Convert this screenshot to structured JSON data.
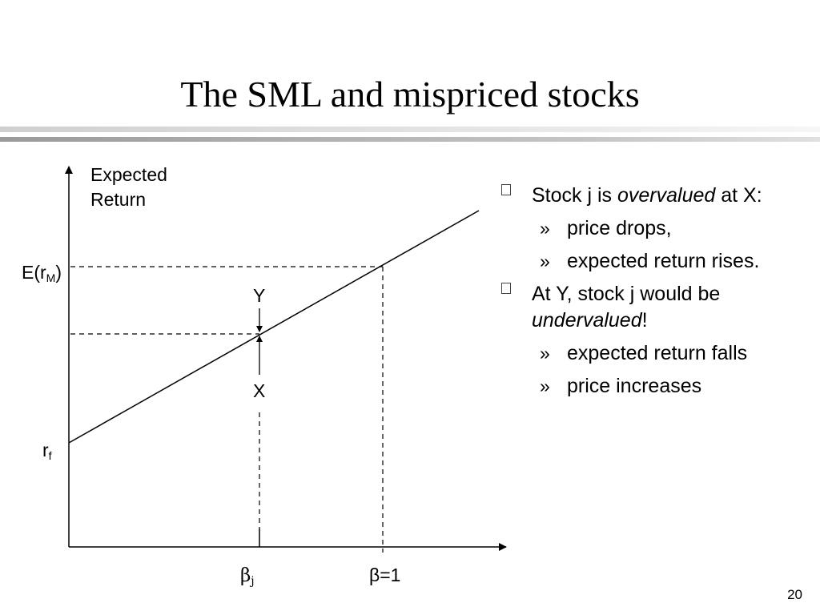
{
  "slide": {
    "title": "The SML and mispriced stocks",
    "page_number": "20"
  },
  "diagram": {
    "y_axis_label_line1": "Expected",
    "y_axis_label_line2": "Return",
    "erm_label": "E(r",
    "erm_sub": "M",
    "erm_close": ")",
    "rf_label": "r",
    "rf_sub": "f",
    "point_y": "Y",
    "point_x": "X",
    "beta_j_label": "β",
    "beta_j_sub": "j",
    "beta_one_label": "β=1"
  },
  "bullets": {
    "item1": {
      "pre": "Stock j is ",
      "em": "overvalued",
      "post": " at X:",
      "subs": [
        "price drops,",
        "expected return rises."
      ]
    },
    "item2": {
      "pre": "At Y, stock j would be ",
      "em": "undervalued",
      "post": "!",
      "subs": [
        "expected return falls",
        "price increases"
      ]
    },
    "sub_marker": "»"
  }
}
